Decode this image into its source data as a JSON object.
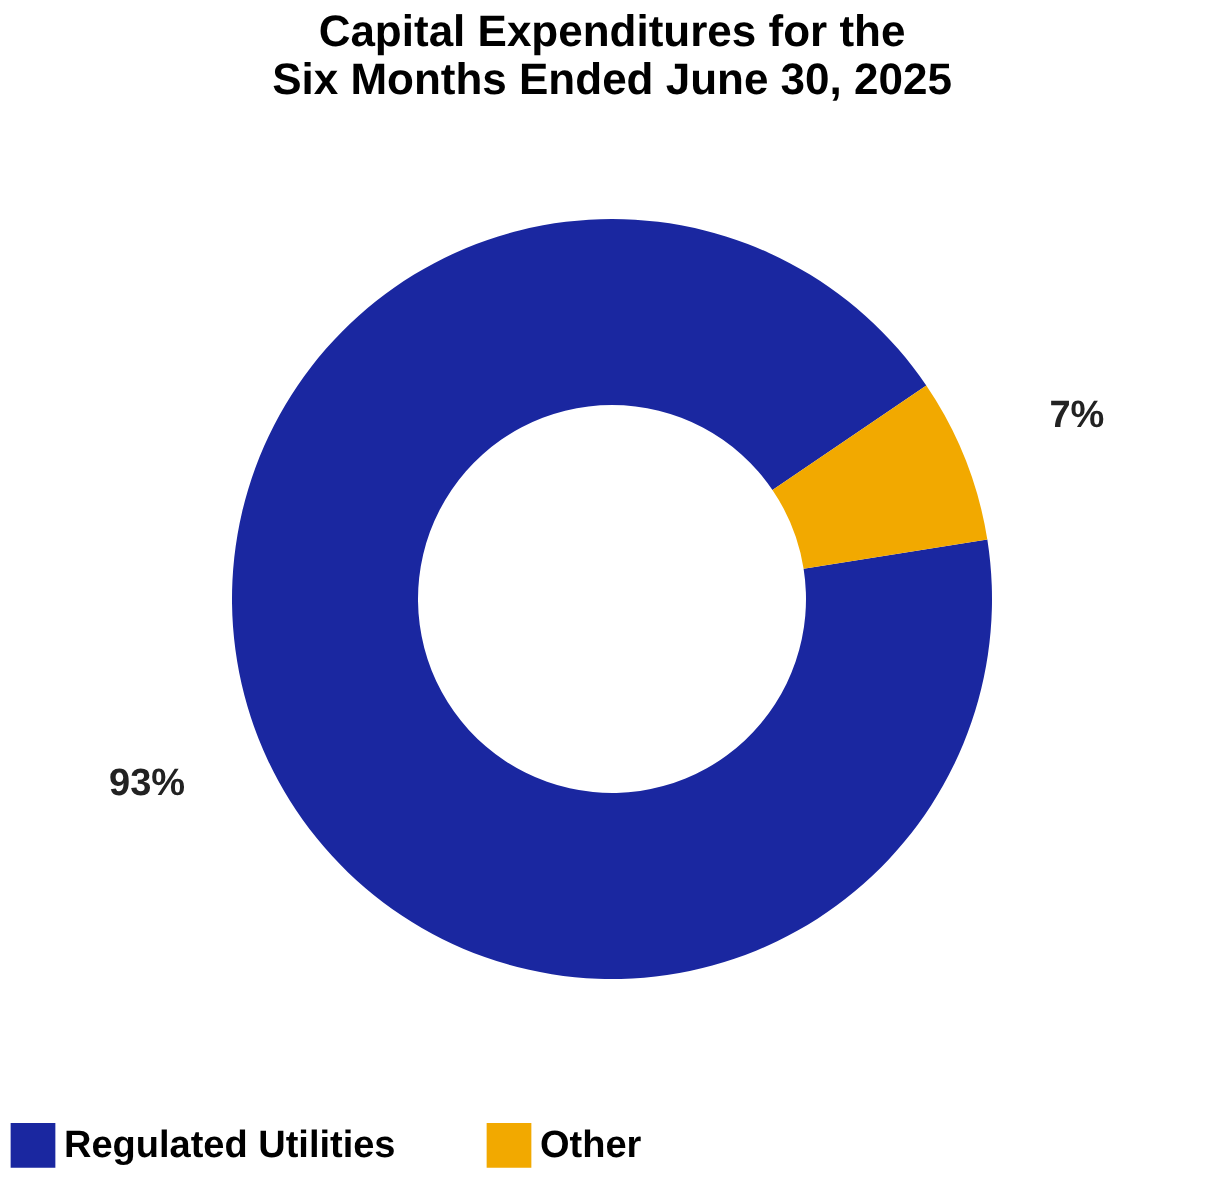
{
  "chart_data": {
    "type": "donut",
    "title": [
      "Capital Expenditures for the",
      "Six Months Ended June 30, 2025"
    ],
    "categories": [
      "Regulated Utilities",
      "Other"
    ],
    "values": [
      93,
      7
    ],
    "colors": [
      "#1a27a0",
      "#f2a900"
    ],
    "value_labels": [
      "93%",
      "7%"
    ],
    "legend": "bottom"
  }
}
